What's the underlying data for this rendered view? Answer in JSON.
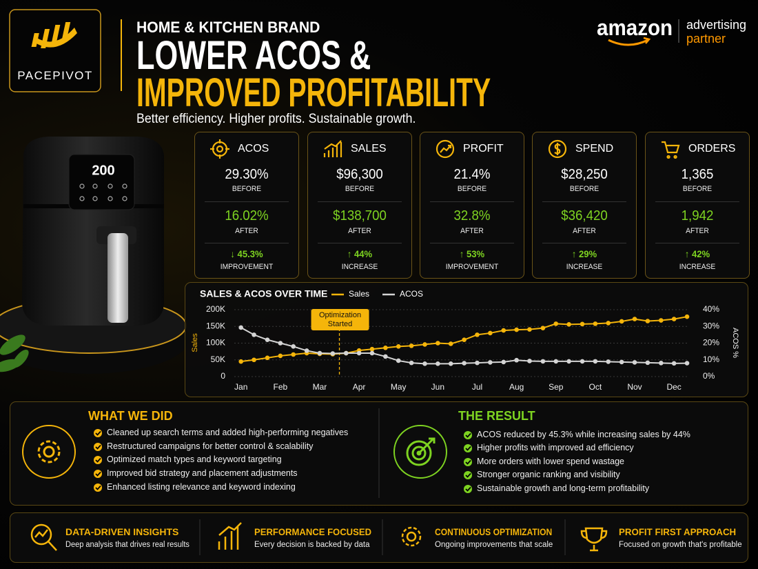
{
  "logo": {
    "name": "PACEPIVOT"
  },
  "header": {
    "eyebrow": "HOME & KITCHEN BRAND",
    "title_line1": "LOWER ACOS &",
    "title_line2": "IMPROVED PROFITABILITY",
    "tagline": "Better efficiency. Higher profits. Sustainable growth."
  },
  "partner": {
    "brand": "amazon",
    "line1": "advertising",
    "line2": "partner"
  },
  "product": {
    "display": "200"
  },
  "metrics": [
    {
      "label": "ACOS",
      "before": "29.30%",
      "before_label": "BEFORE",
      "after": "16.02%",
      "after_label": "AFTER",
      "change": "↓ 45.3%",
      "change_label": "IMPROVEMENT"
    },
    {
      "label": "SALES",
      "before": "$96,300",
      "before_label": "BEFORE",
      "after": "$138,700",
      "after_label": "AFTER",
      "change": "↑ 44%",
      "change_label": "INCREASE"
    },
    {
      "label": "PROFIT",
      "before": "21.4%",
      "before_label": "BEFORE",
      "after": "32.8%",
      "after_label": "AFTER",
      "change": "↑ 53%",
      "change_label": "IMPROVEMENT"
    },
    {
      "label": "SPEND",
      "before": "$28,250",
      "before_label": "BEFORE",
      "after": "$36,420",
      "after_label": "AFTER",
      "change": "↑ 29%",
      "change_label": "INCREASE"
    },
    {
      "label": "ORDERS",
      "before": "1,365",
      "before_label": "BEFORE",
      "after": "1,942",
      "after_label": "AFTER",
      "change": "↑ 42%",
      "change_label": "INCREASE"
    }
  ],
  "chart_data": {
    "type": "line",
    "title": "SALES & ACOS OVER TIME",
    "y_label": "Sales",
    "y2_label": "ACOS %",
    "x": [
      0,
      0.33,
      0.67,
      1,
      1.33,
      1.67,
      2,
      2.33,
      2.67,
      3,
      3.33,
      3.67,
      4,
      4.33,
      4.67,
      5,
      5.33,
      5.67,
      6,
      6.33,
      6.67,
      7,
      7.33,
      7.67,
      8,
      8.33,
      8.67,
      9,
      9.33,
      9.67,
      10,
      10.33,
      10.67,
      11,
      11.33
    ],
    "xlim": [
      -0.1,
      11.4
    ],
    "xticks": [
      {
        "value": 0,
        "label": "Jan"
      },
      {
        "value": 1,
        "label": "Feb"
      },
      {
        "value": 2,
        "label": "Mar"
      },
      {
        "value": 3,
        "label": "Apr"
      },
      {
        "value": 4,
        "label": "May"
      },
      {
        "value": 5,
        "label": "Jun"
      },
      {
        "value": 6,
        "label": "Jul"
      },
      {
        "value": 7,
        "label": "Aug"
      },
      {
        "value": 8,
        "label": "Sep"
      },
      {
        "value": 9,
        "label": "Oct"
      },
      {
        "value": 10,
        "label": "Nov"
      },
      {
        "value": 11,
        "label": "Dec"
      }
    ],
    "ylim": [
      0,
      200
    ],
    "yticks": [
      0,
      {
        "value": 50,
        "label": "50K"
      },
      {
        "value": 100,
        "label": "100K"
      },
      {
        "value": 150,
        "label": "150K"
      },
      {
        "value": 200,
        "label": "200K"
      }
    ],
    "y2lim": [
      0,
      40
    ],
    "y2ticks": [
      {
        "value": 0,
        "label": "0%"
      },
      {
        "value": 10,
        "label": "10%"
      },
      {
        "value": 20,
        "label": "20%"
      },
      {
        "value": 30,
        "label": "30%"
      },
      {
        "value": 40,
        "label": "40%"
      }
    ],
    "grid": true,
    "series": [
      {
        "name": "Sales",
        "color": "#f5b50a",
        "values": [
          45,
          50,
          56,
          62,
          66,
          70,
          68,
          67,
          70,
          78,
          82,
          86,
          90,
          92,
          96,
          100,
          98,
          110,
          125,
          130,
          138,
          140,
          141,
          145,
          158,
          156,
          157,
          158,
          160,
          165,
          172,
          166,
          168,
          172,
          179
        ]
      },
      {
        "name": "ACOS",
        "color": "#d4d4d4",
        "axis": "y2",
        "values": [
          29.3,
          25,
          22,
          20,
          18,
          15.5,
          14,
          13.8,
          14,
          14,
          14,
          12,
          9.5,
          8.2,
          7.7,
          7.7,
          7.7,
          8,
          8.2,
          8.5,
          8.7,
          9.8,
          9.3,
          9.1,
          9.1,
          9.1,
          9.1,
          9.1,
          8.9,
          8.7,
          8.5,
          8.3,
          8.1,
          7.9,
          8
        ]
      }
    ],
    "annotation": {
      "text": "Optimization Started",
      "x": 2.5
    }
  },
  "what_we_did": {
    "title": "WHAT WE DID",
    "items": [
      "Cleaned up search terms and added high-performing negatives",
      "Restructured campaigns for better control & scalability",
      "Optimized match types and keyword targeting",
      "Improved bid strategy and placement adjustments",
      "Enhanced listing relevance and keyword indexing"
    ]
  },
  "the_result": {
    "title": "THE RESULT",
    "items": [
      "ACOS reduced by 45.3% while increasing sales by 44%",
      "Higher profits with improved ad efficiency",
      "More orders with lower spend wastage",
      "Stronger organic ranking and visibility",
      "Sustainable growth and long-term profitability"
    ]
  },
  "features": [
    {
      "title": "DATA-DRIVEN INSIGHTS",
      "text": "Deep analysis that drives real results"
    },
    {
      "title": "PERFORMANCE FOCUSED",
      "text": "Every decision is backed by data"
    },
    {
      "title": "CONTINUOUS OPTIMIZATION",
      "text": "Ongoing improvements that scale"
    },
    {
      "title": "PROFIT FIRST APPROACH",
      "text": "Focused on growth that's profitable"
    }
  ]
}
